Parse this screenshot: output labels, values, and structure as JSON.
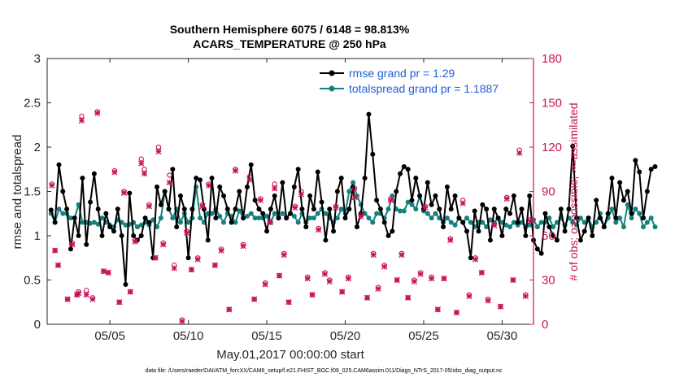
{
  "chart_data": {
    "type": "line",
    "title": "Southern Hemisphere 6075 / 6148 = 98.813%",
    "subtitle": "ACARS_TEMPERATURE @ 250 hPa",
    "xlabel": "May.01,2017 00:00:00 start",
    "ylabel": "rmse and totalspread",
    "ylabel_right": "# of obs: o=possible; ×=assimilated",
    "footnote": "data file: /Users/raeder/DAI/ATM_forcXX/CAM6_setup/f.e21.FHIST_BGC.f09_025.CAM6assim.011/Diags_NTrS_2017-05/obs_diag_output.nc",
    "xlim": [
      1.0,
      32.0
    ],
    "ylim": [
      0,
      3
    ],
    "ylim_right": [
      0,
      180
    ],
    "x_tick_values": [
      5,
      10,
      15,
      20,
      25,
      30
    ],
    "x_tick_labels": [
      "05/05",
      "05/10",
      "05/15",
      "05/20",
      "05/25",
      "05/30"
    ],
    "y_ticks": [
      "0",
      "0.5",
      "1",
      "1.5",
      "2",
      "2.5",
      "3"
    ],
    "y_ticks_right": [
      "0",
      "30",
      "60",
      "90",
      "120",
      "150",
      "180"
    ],
    "legend_position": "top-right",
    "x_step_days": 0.25,
    "x_start": 1.25,
    "series": [
      {
        "name": "rmse grand pr = 1.29",
        "color": "#000000",
        "values": [
          1.29,
          1.15,
          1.8,
          1.5,
          1.3,
          0.85,
          1.2,
          1.0,
          1.65,
          0.9,
          1.38,
          1.7,
          1.3,
          1.0,
          1.25,
          1.1,
          1.05,
          1.3,
          1.0,
          0.45,
          1.48,
          1.0,
          0.95,
          1.0,
          1.2,
          1.15,
          0.75,
          1.55,
          1.35,
          1.5,
          1.3,
          1.75,
          1.1,
          1.45,
          1.3,
          0.75,
          1.3,
          1.65,
          1.63,
          1.3,
          0.95,
          1.65,
          1.2,
          1.55,
          1.45,
          1.3,
          1.15,
          1.3,
          1.5,
          1.2,
          1.55,
          1.8,
          1.4,
          1.3,
          1.25,
          1.05,
          1.3,
          1.45,
          1.2,
          1.6,
          1.2,
          1.25,
          1.55,
          1.75,
          1.3,
          1.1,
          1.45,
          1.3,
          1.72,
          1.38,
          0.95,
          1.3,
          1.05,
          1.5,
          1.65,
          1.2,
          1.3,
          1.55,
          1.1,
          1.25,
          1.65,
          2.37,
          1.92,
          1.4,
          1.3,
          1.15,
          1.0,
          1.05,
          1.5,
          1.7,
          1.78,
          1.75,
          1.4,
          1.65,
          1.45,
          1.3,
          1.6,
          1.35,
          1.45,
          1.3,
          1.1,
          1.55,
          1.3,
          1.45,
          1.2,
          1.15,
          1.05,
          0.75,
          1.28,
          1.05,
          1.35,
          1.3,
          0.95,
          1.3,
          1.2,
          1.0,
          1.3,
          1.25,
          1.45,
          1.15,
          1.3,
          1.0,
          1.45,
          0.95,
          0.85,
          0.8,
          1.25,
          1.1,
          1.0,
          0.95,
          1.3,
          1.05,
          1.3,
          2.01,
          1.2,
          0.95,
          1.05,
          1.2,
          1.0,
          1.4,
          1.2,
          1.1,
          1.25,
          1.65,
          1.2,
          1.6,
          1.4,
          1.5,
          1.25,
          1.85,
          1.72,
          1.2,
          1.5,
          1.75,
          1.78
        ]
      },
      {
        "name": "totalspread grand pr = 1.1887",
        "color": "#15817e",
        "values": [
          1.25,
          1.15,
          1.3,
          1.25,
          1.25,
          1.2,
          1.2,
          1.35,
          1.15,
          1.15,
          1.14,
          1.15,
          1.13,
          1.2,
          1.15,
          1.12,
          1.1,
          1.18,
          1.15,
          1.12,
          1.13,
          1.15,
          1.1,
          1.12,
          1.15,
          1.12,
          1.18,
          1.1,
          1.2,
          1.5,
          1.3,
          1.2,
          1.3,
          1.15,
          1.25,
          1.15,
          1.2,
          1.55,
          1.2,
          1.15,
          1.25,
          1.25,
          1.3,
          1.22,
          1.15,
          1.25,
          1.22,
          1.15,
          1.28,
          1.2,
          1.22,
          1.25,
          1.2,
          1.2,
          1.2,
          1.22,
          1.15,
          1.25,
          1.2,
          1.25,
          1.2,
          1.25,
          1.22,
          1.15,
          1.25,
          1.15,
          1.2,
          1.2,
          1.25,
          1.3,
          1.25,
          1.2,
          1.15,
          1.2,
          1.3,
          1.25,
          1.5,
          1.6,
          1.45,
          1.35,
          1.25,
          1.2,
          1.15,
          1.25,
          1.25,
          1.2,
          1.3,
          1.45,
          1.3,
          1.28,
          1.28,
          1.38,
          1.35,
          1.3,
          1.45,
          1.28,
          1.25,
          1.2,
          1.25,
          1.2,
          1.15,
          1.2,
          1.15,
          1.12,
          1.2,
          1.15,
          1.2,
          1.15,
          1.1,
          1.15,
          1.15,
          1.1,
          1.18,
          1.15,
          1.2,
          1.15,
          1.12,
          1.1,
          1.15,
          1.12,
          1.15,
          1.1,
          1.12,
          1.18,
          1.1,
          1.15,
          1.15,
          1.2,
          1.1,
          1.15,
          1.2,
          1.12,
          1.2,
          1.15,
          1.12,
          1.2,
          1.15,
          1.2,
          1.1,
          1.15,
          1.25,
          1.1,
          1.2,
          1.3,
          1.15,
          1.2,
          1.1,
          1.35,
          1.2,
          1.3,
          1.25,
          1.1,
          1.15,
          1.2,
          1.1
        ]
      }
    ],
    "obs_possible_x": [
      1.3,
      1.5,
      1.7,
      2.3,
      2.6,
      2.9,
      3.0,
      3.2,
      3.5,
      3.9,
      4.2,
      4.6,
      4.9,
      5.3,
      5.6,
      5.9,
      6.3,
      6.6,
      7.0,
      7.2,
      7.5,
      7.9,
      8.1,
      8.4,
      8.8,
      9.1,
      9.6,
      9.9,
      10.2,
      10.6,
      10.9,
      11.3,
      11.7,
      12.1,
      12.6,
      13.0,
      13.5,
      13.9,
      14.2,
      14.6,
      14.9,
      15.2,
      15.5,
      15.8,
      16.1,
      16.4,
      16.8,
      17.2,
      17.6,
      17.9,
      18.3,
      18.7,
      19.0,
      19.4,
      19.8,
      20.2,
      20.6,
      21.0,
      21.4,
      21.8,
      22.1,
      22.5,
      22.9,
      23.3,
      23.6,
      24.0,
      24.4,
      24.8,
      25.1,
      25.5,
      25.9,
      26.3,
      26.7,
      27.1,
      27.5,
      27.9,
      28.3,
      28.7,
      29.1,
      29.5,
      29.9,
      30.3,
      30.7,
      31.1,
      31.5,
      31.8
    ],
    "obs_possible_y": [
      95,
      50,
      40,
      17,
      55,
      20,
      22,
      141,
      23,
      18,
      144,
      36,
      35,
      104,
      15,
      90,
      22,
      57,
      112,
      105,
      81,
      45,
      120,
      55,
      101,
      40,
      3,
      63,
      37,
      45,
      81,
      95,
      40,
      51,
      10,
      105,
      54,
      100,
      17,
      85,
      28,
      70,
      95,
      33,
      48,
      15,
      80,
      90,
      32,
      20,
      65,
      35,
      30,
      80,
      22,
      32,
      92,
      74,
      18,
      48,
      25,
      40,
      85,
      30,
      48,
      18,
      30,
      35,
      80,
      32,
      10,
      31,
      58,
      8,
      84,
      20,
      45,
      35,
      17,
      68,
      12,
      86,
      30,
      118,
      20,
      71
    ],
    "obs_assimilated_x": [
      1.3,
      1.5,
      1.7,
      2.3,
      2.6,
      2.9,
      3.0,
      3.2,
      3.5,
      3.9,
      4.2,
      4.6,
      4.9,
      5.3,
      5.6,
      5.9,
      6.3,
      6.6,
      7.0,
      7.2,
      7.5,
      7.9,
      8.1,
      8.4,
      8.8,
      9.1,
      9.6,
      9.9,
      10.2,
      10.6,
      10.9,
      11.3,
      11.7,
      12.1,
      12.6,
      13.0,
      13.5,
      13.9,
      14.2,
      14.6,
      14.9,
      15.2,
      15.5,
      15.8,
      16.1,
      16.4,
      16.8,
      17.2,
      17.6,
      17.9,
      18.3,
      18.7,
      19.0,
      19.4,
      19.8,
      20.2,
      20.6,
      21.0,
      21.4,
      21.8,
      22.1,
      22.5,
      22.9,
      23.3,
      23.6,
      24.0,
      24.4,
      24.8,
      25.1,
      25.5,
      25.9,
      26.3,
      26.7,
      27.1,
      27.5,
      27.9,
      28.3,
      28.7,
      29.1,
      29.5,
      29.9,
      30.3,
      30.7,
      31.1,
      31.5,
      31.8
    ],
    "obs_assimilated_y": [
      94,
      50,
      40,
      17,
      54,
      20,
      21,
      138,
      20,
      17,
      143,
      36,
      35,
      103,
      15,
      89,
      22,
      56,
      109,
      102,
      80,
      45,
      117,
      54,
      96,
      38,
      2,
      62,
      37,
      44,
      80,
      94,
      40,
      50,
      10,
      104,
      53,
      98,
      17,
      84,
      27,
      69,
      92,
      33,
      47,
      15,
      79,
      88,
      31,
      20,
      64,
      34,
      29,
      79,
      22,
      31,
      86,
      73,
      18,
      47,
      24,
      39,
      84,
      30,
      47,
      18,
      29,
      34,
      79,
      31,
      10,
      31,
      57,
      8,
      82,
      19,
      44,
      35,
      16,
      67,
      12,
      85,
      30,
      116,
      19,
      70
    ]
  }
}
